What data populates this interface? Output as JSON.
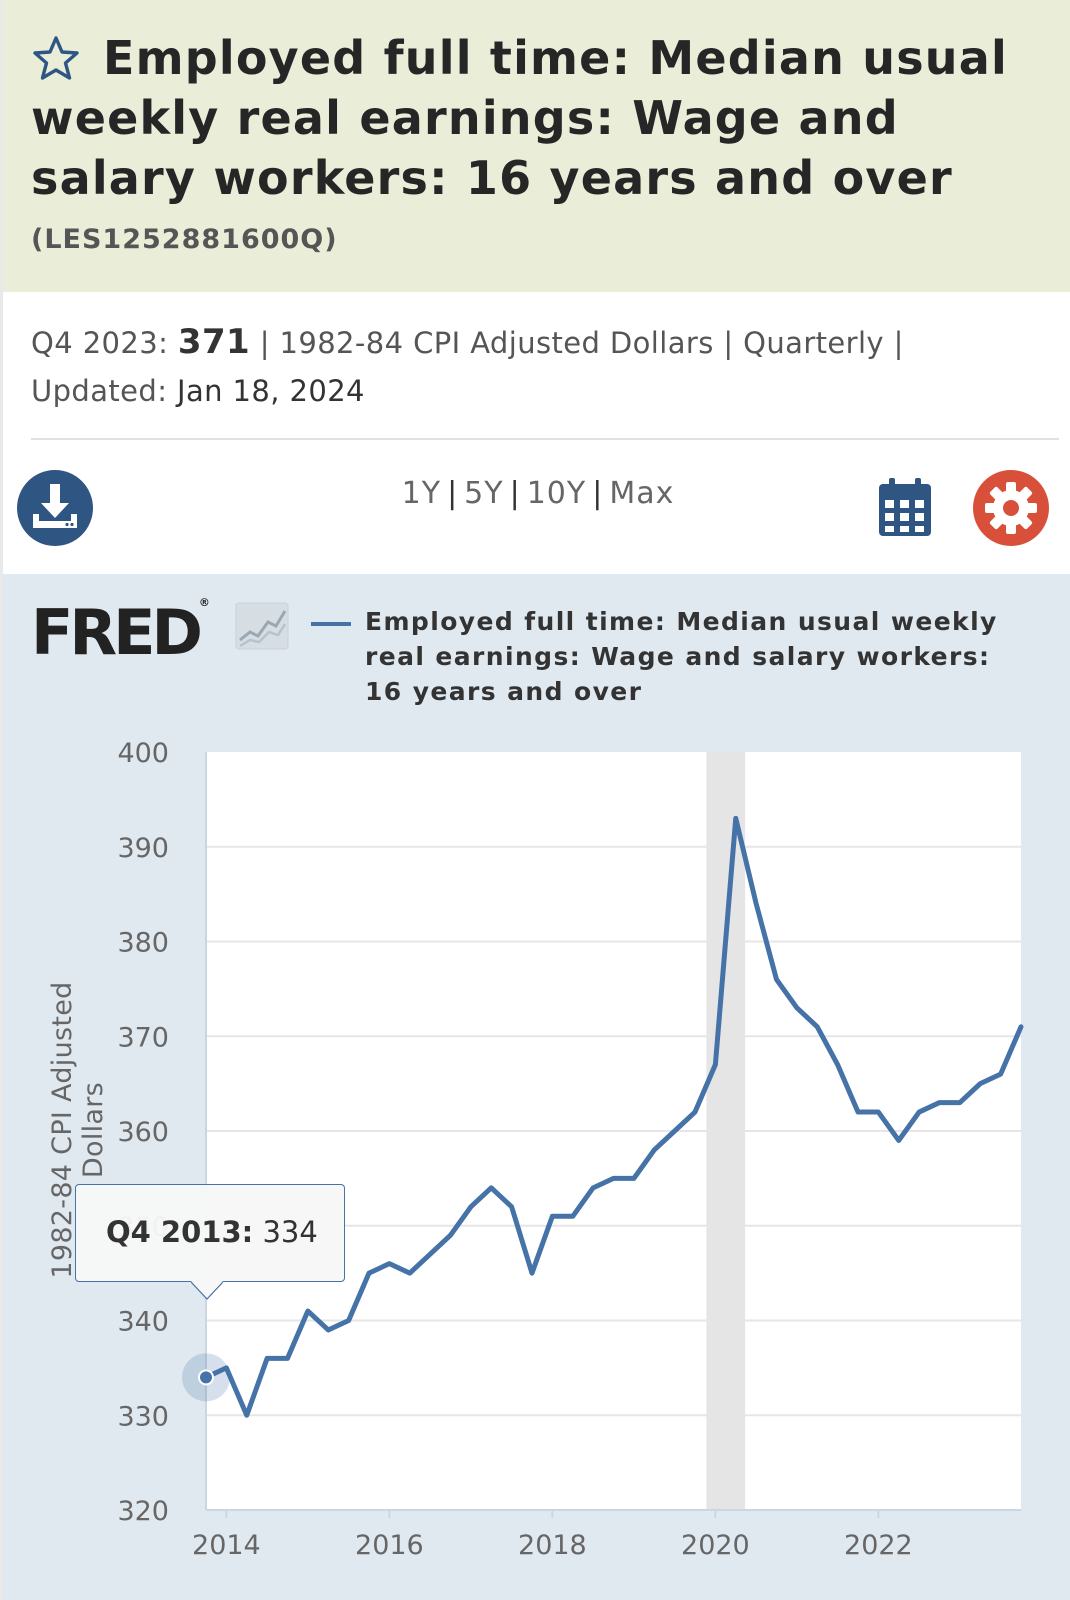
{
  "header": {
    "title": "Employed full time: Median usual weekly real earnings: Wage and salary workers: 16 years and over",
    "series_id": "(LES1252881600Q)"
  },
  "meta": {
    "period_label": "Q4 2023:",
    "latest_value": "371",
    "units": "1982-84 CPI Adjusted Dollars",
    "frequency": "Quarterly",
    "updated_label": "Updated:",
    "updated_date": "Jan 18, 2024"
  },
  "toolbar": {
    "ranges": [
      "1Y",
      "5Y",
      "10Y",
      "Max"
    ],
    "separator": "|"
  },
  "brand": {
    "logo_text": "FRED",
    "trademark": "®"
  },
  "tooltip": {
    "label": "Q4 2013:",
    "value": "334"
  },
  "colors": {
    "series": "#4572a7",
    "header_bg": "#eaeed8",
    "panel_bg": "#e1e9f0",
    "recession": "#e5e5e5",
    "download_btn": "#2f5583",
    "settings_btn": "#d9503a"
  },
  "chart_data": {
    "type": "line",
    "title": "",
    "ylabel": "1982-84 CPI Adjusted Dollars",
    "xlabel": "",
    "ylim": [
      320,
      400
    ],
    "yticks": [
      320,
      330,
      340,
      350,
      360,
      370,
      380,
      390,
      400
    ],
    "xticks": [
      "2014",
      "2016",
      "2018",
      "2020",
      "2022"
    ],
    "grid": true,
    "legend_position": "top",
    "recession_shading": [
      [
        "2020 Q1",
        "2020 Q2"
      ]
    ],
    "x": [
      "2013 Q4",
      "2014 Q1",
      "2014 Q2",
      "2014 Q3",
      "2014 Q4",
      "2015 Q1",
      "2015 Q2",
      "2015 Q3",
      "2015 Q4",
      "2016 Q1",
      "2016 Q2",
      "2016 Q3",
      "2016 Q4",
      "2017 Q1",
      "2017 Q2",
      "2017 Q3",
      "2017 Q4",
      "2018 Q1",
      "2018 Q2",
      "2018 Q3",
      "2018 Q4",
      "2019 Q1",
      "2019 Q2",
      "2019 Q3",
      "2019 Q4",
      "2020 Q1",
      "2020 Q2",
      "2020 Q3",
      "2020 Q4",
      "2021 Q1",
      "2021 Q2",
      "2021 Q3",
      "2021 Q4",
      "2022 Q1",
      "2022 Q2",
      "2022 Q3",
      "2022 Q4",
      "2023 Q1",
      "2023 Q2",
      "2023 Q3",
      "2023 Q4"
    ],
    "series": [
      {
        "name": "Employed full time: Median usual weekly real earnings: Wage and salary workers: 16 years and over",
        "values": [
          334,
          335,
          330,
          336,
          336,
          341,
          339,
          340,
          345,
          346,
          345,
          347,
          349,
          352,
          354,
          352,
          345,
          351,
          351,
          354,
          355,
          355,
          358,
          360,
          362,
          367,
          393,
          384,
          376,
          373,
          371,
          367,
          362,
          362,
          359,
          362,
          363,
          363,
          365,
          366,
          371
        ]
      }
    ]
  }
}
